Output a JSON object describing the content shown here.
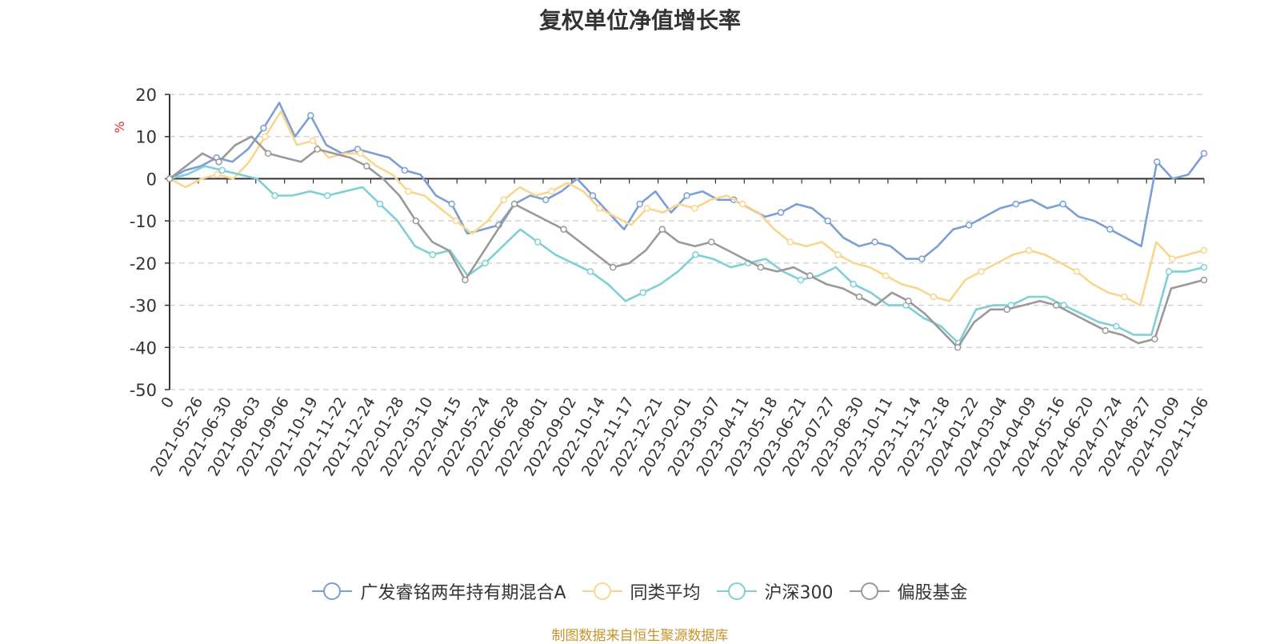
{
  "chart_data": {
    "type": "line",
    "title": "复权单位净值增长率",
    "ylabel": "%",
    "ylim": [
      -50,
      20
    ],
    "yticks": [
      "20",
      "10",
      "0",
      "-10",
      "-20",
      "-30",
      "-40",
      "-50"
    ],
    "ytick_values": [
      20,
      10,
      0,
      -10,
      -20,
      -30,
      -40,
      -50
    ],
    "x_labels": [
      "0",
      "2021-05-26",
      "2021-06-30",
      "2021-08-03",
      "2021-09-06",
      "2021-10-19",
      "2021-11-22",
      "2021-12-24",
      "2022-01-28",
      "2022-03-10",
      "2022-04-15",
      "2022-05-24",
      "2022-06-28",
      "2022-08-01",
      "2022-09-02",
      "2022-10-14",
      "2022-11-17",
      "2022-12-21",
      "2023-02-01",
      "2023-03-07",
      "2023-04-11",
      "2023-05-18",
      "2023-06-21",
      "2023-07-27",
      "2023-08-30",
      "2023-10-11",
      "2023-11-14",
      "2023-12-18",
      "2024-01-22",
      "2024-03-04",
      "2024-04-09",
      "2024-05-16",
      "2024-06-20",
      "2024-07-24",
      "2024-08-27",
      "2024-10-09",
      "2024-11-06"
    ],
    "grid": true,
    "legend_position": "bottom",
    "series": [
      {
        "name": "广发睿铭两年持有期混合A",
        "color": "#7b9fd4",
        "values": [
          0,
          2,
          3,
          5,
          4,
          7,
          12,
          18,
          10,
          15,
          8,
          6,
          7,
          6,
          5,
          2,
          1,
          -4,
          -6,
          -13,
          -12,
          -11,
          -6,
          -4,
          -5,
          -3,
          0,
          -4,
          -8,
          -12,
          -6,
          -3,
          -8,
          -4,
          -3,
          -5,
          -5,
          -7,
          -9,
          -8,
          -6,
          -7,
          -10,
          -14,
          -16,
          -15,
          -16,
          -19,
          -19,
          -16,
          -12,
          -11,
          -9,
          -7,
          -6,
          -5,
          -7,
          -6,
          -9,
          -10,
          -12,
          -14,
          -16,
          4,
          0,
          1,
          6
        ]
      },
      {
        "name": "同类平均",
        "color": "#f9d58e",
        "values": [
          0,
          -2,
          0,
          1,
          0,
          4,
          10,
          16,
          8,
          9,
          5,
          6,
          6,
          3,
          1,
          -3,
          -4,
          -7,
          -10,
          -13,
          -10,
          -5,
          -2,
          -4,
          -3,
          -1,
          -3,
          -7,
          -9,
          -11,
          -7,
          -8,
          -6,
          -7,
          -5,
          -4,
          -6,
          -8,
          -12,
          -15,
          -16,
          -15,
          -18,
          -20,
          -21,
          -23,
          -25,
          -26,
          -28,
          -29,
          -24,
          -22,
          -20,
          -18,
          -17,
          -18,
          -20,
          -22,
          -25,
          -27,
          -28,
          -30,
          -15,
          -19,
          -18,
          -17
        ]
      },
      {
        "name": "沪深300",
        "color": "#7fcfd4",
        "values": [
          0,
          1,
          3,
          2,
          1,
          0,
          -4,
          -4,
          -3,
          -4,
          -3,
          -2,
          -6,
          -10,
          -16,
          -18,
          -17,
          -23,
          -20,
          -16,
          -12,
          -15,
          -18,
          -20,
          -22,
          -25,
          -29,
          -27,
          -25,
          -22,
          -18,
          -19,
          -21,
          -20,
          -19,
          -22,
          -24,
          -23,
          -21,
          -25,
          -27,
          -30,
          -30,
          -33,
          -35,
          -39,
          -31,
          -30,
          -30,
          -28,
          -28,
          -30,
          -32,
          -34,
          -35,
          -37,
          -37,
          -22,
          -22,
          -21
        ]
      },
      {
        "name": "偏股基金",
        "color": "#999999",
        "values": [
          0,
          3,
          6,
          4,
          8,
          10,
          6,
          5,
          4,
          7,
          6,
          5,
          3,
          0,
          -4,
          -10,
          -15,
          -17,
          -24,
          -18,
          -12,
          -6,
          -8,
          -10,
          -12,
          -15,
          -18,
          -21,
          -20,
          -17,
          -12,
          -15,
          -16,
          -15,
          -17,
          -19,
          -21,
          -22,
          -21,
          -23,
          -25,
          -26,
          -28,
          -30,
          -27,
          -29,
          -32,
          -36,
          -40,
          -34,
          -31,
          -31,
          -30,
          -29,
          -30,
          -32,
          -34,
          -36,
          -37,
          -39,
          -38,
          -26,
          -25,
          -24
        ]
      }
    ]
  },
  "legend": {
    "items": [
      {
        "label": "广发睿铭两年持有期混合A",
        "color": "#7b9fd4"
      },
      {
        "label": "同类平均",
        "color": "#f9d58e"
      },
      {
        "label": "沪深300",
        "color": "#7fcfd4"
      },
      {
        "label": "偏股基金",
        "color": "#999999"
      }
    ]
  },
  "source": "制图数据来自恒生聚源数据库"
}
